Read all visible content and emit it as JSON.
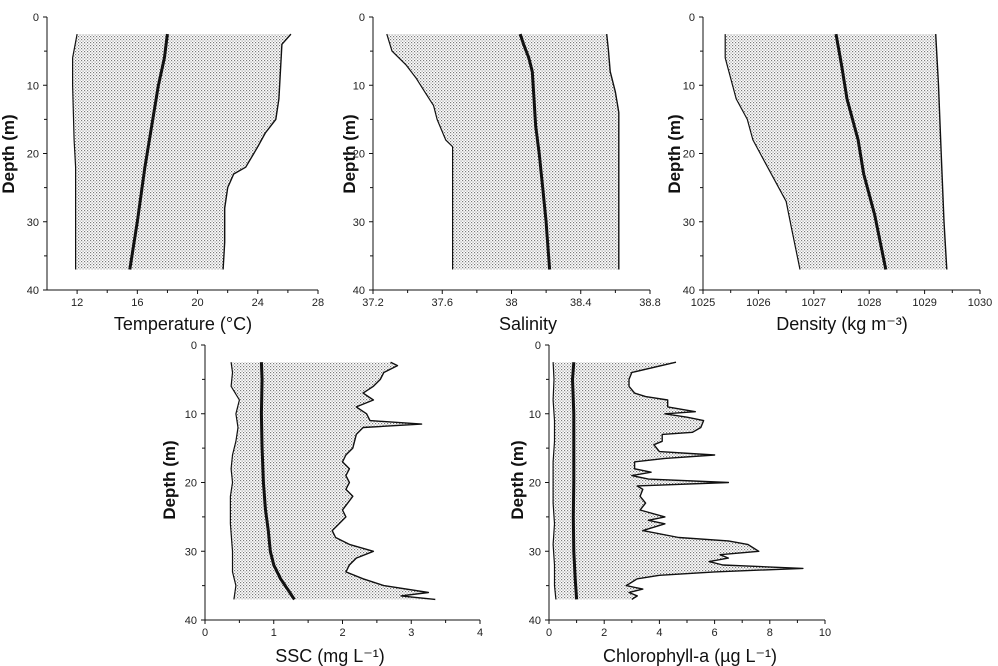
{
  "chart_data": [
    {
      "type": "area",
      "xlabel": "Temperature (°C)",
      "ylabel": "Depth (m)",
      "xlim": [
        10,
        28
      ],
      "ylim": [
        0,
        40
      ],
      "xticks": [
        "12",
        "16",
        "20",
        "24",
        "28"
      ],
      "yticks": [
        "0",
        "10",
        "20",
        "30",
        "40"
      ],
      "series": [
        {
          "role": "min",
          "points": [
            [
              12,
              2.5
            ],
            [
              11.7,
              6
            ],
            [
              11.7,
              10
            ],
            [
              11.8,
              18
            ],
            [
              11.9,
              22
            ],
            [
              11.9,
              30
            ],
            [
              11.9,
              37
            ]
          ]
        },
        {
          "role": "mean",
          "points": [
            [
              18,
              2.5
            ],
            [
              17.8,
              6
            ],
            [
              17.4,
              10
            ],
            [
              16.8,
              18
            ],
            [
              16.5,
              22
            ],
            [
              16,
              30
            ],
            [
              15.5,
              37
            ]
          ]
        },
        {
          "role": "max",
          "points": [
            [
              26.2,
              2.5
            ],
            [
              25.6,
              4
            ],
            [
              25.5,
              8
            ],
            [
              25.4,
              12
            ],
            [
              25.2,
              15
            ],
            [
              24.5,
              17
            ],
            [
              24,
              19
            ],
            [
              23.2,
              22
            ],
            [
              22.4,
              23
            ],
            [
              22,
              25
            ],
            [
              21.8,
              28
            ],
            [
              21.8,
              33
            ],
            [
              21.7,
              37
            ]
          ]
        }
      ]
    },
    {
      "type": "area",
      "xlabel": "Salinity",
      "ylabel": "Depth (m)",
      "xlim": [
        37.2,
        38.8
      ],
      "ylim": [
        0,
        40
      ],
      "xticks": [
        "37.2",
        "37.6",
        "38",
        "38.4",
        "38.8"
      ],
      "yticks": [
        "0",
        "10",
        "20",
        "30",
        "40"
      ],
      "series": [
        {
          "role": "min",
          "points": [
            [
              37.28,
              2.5
            ],
            [
              37.31,
              5
            ],
            [
              37.39,
              7
            ],
            [
              37.45,
              9
            ],
            [
              37.5,
              11
            ],
            [
              37.55,
              13
            ],
            [
              37.57,
              15
            ],
            [
              37.62,
              18
            ],
            [
              37.66,
              19
            ],
            [
              37.66,
              25
            ],
            [
              37.66,
              30
            ],
            [
              37.66,
              37
            ]
          ]
        },
        {
          "role": "mean",
          "points": [
            [
              38.05,
              2.5
            ],
            [
              38.07,
              4
            ],
            [
              38.1,
              6
            ],
            [
              38.12,
              8
            ],
            [
              38.13,
              12
            ],
            [
              38.14,
              16
            ],
            [
              38.16,
              20
            ],
            [
              38.18,
              25
            ],
            [
              38.2,
              30
            ],
            [
              38.22,
              37
            ]
          ]
        },
        {
          "role": "max",
          "points": [
            [
              38.55,
              2.5
            ],
            [
              38.56,
              5
            ],
            [
              38.57,
              8
            ],
            [
              38.6,
              11
            ],
            [
              38.62,
              14
            ],
            [
              38.62,
              20
            ],
            [
              38.62,
              30
            ],
            [
              38.62,
              37
            ]
          ]
        }
      ]
    },
    {
      "type": "area",
      "xlabel": "Density (kg m⁻³)",
      "ylabel": "Depth (m)",
      "xlim": [
        1025,
        1030
      ],
      "ylim": [
        0,
        40
      ],
      "xticks": [
        "1025",
        "1026",
        "1027",
        "1028",
        "1029",
        "1030"
      ],
      "yticks": [
        "0",
        "10",
        "20",
        "30",
        "40"
      ],
      "series": [
        {
          "role": "min",
          "points": [
            [
              1025.4,
              2.5
            ],
            [
              1025.4,
              6
            ],
            [
              1025.5,
              9
            ],
            [
              1025.6,
              12
            ],
            [
              1025.8,
              15
            ],
            [
              1025.9,
              18
            ],
            [
              1026.1,
              21
            ],
            [
              1026.3,
              24
            ],
            [
              1026.5,
              27
            ],
            [
              1026.6,
              31
            ],
            [
              1026.7,
              35
            ],
            [
              1026.75,
              37
            ]
          ]
        },
        {
          "role": "mean",
          "points": [
            [
              1027.4,
              2.5
            ],
            [
              1027.5,
              7
            ],
            [
              1027.6,
              12
            ],
            [
              1027.8,
              18
            ],
            [
              1027.9,
              23
            ],
            [
              1028.1,
              29
            ],
            [
              1028.3,
              37
            ]
          ]
        },
        {
          "role": "max",
          "points": [
            [
              1029.2,
              2.5
            ],
            [
              1029.25,
              10
            ],
            [
              1029.3,
              20
            ],
            [
              1029.35,
              30
            ],
            [
              1029.4,
              37
            ]
          ]
        }
      ]
    },
    {
      "type": "area",
      "xlabel": "SSC (mg L⁻¹)",
      "ylabel": "Depth (m)",
      "xlim": [
        0,
        4
      ],
      "ylim": [
        0,
        40
      ],
      "xticks": [
        "0",
        "1",
        "2",
        "3",
        "4"
      ],
      "yticks": [
        "0",
        "10",
        "20",
        "30",
        "40"
      ],
      "series": [
        {
          "role": "min",
          "points": [
            [
              0.38,
              2.5
            ],
            [
              0.4,
              4
            ],
            [
              0.38,
              6
            ],
            [
              0.5,
              8
            ],
            [
              0.45,
              10
            ],
            [
              0.48,
              12
            ],
            [
              0.45,
              14
            ],
            [
              0.4,
              16
            ],
            [
              0.38,
              18
            ],
            [
              0.4,
              20
            ],
            [
              0.37,
              22
            ],
            [
              0.37,
              26
            ],
            [
              0.4,
              30
            ],
            [
              0.4,
              33
            ],
            [
              0.45,
              35
            ],
            [
              0.42,
              37
            ]
          ]
        },
        {
          "role": "mean",
          "points": [
            [
              0.82,
              2.5
            ],
            [
              0.83,
              5
            ],
            [
              0.82,
              10
            ],
            [
              0.83,
              15
            ],
            [
              0.85,
              20
            ],
            [
              0.88,
              24
            ],
            [
              0.92,
              27
            ],
            [
              0.95,
              30
            ],
            [
              1.0,
              32
            ],
            [
              1.1,
              34
            ],
            [
              1.2,
              35.5
            ],
            [
              1.3,
              37
            ]
          ]
        },
        {
          "role": "max",
          "points": [
            [
              2.7,
              2.5
            ],
            [
              2.8,
              3
            ],
            [
              2.6,
              4
            ],
            [
              2.55,
              5
            ],
            [
              2.45,
              6
            ],
            [
              2.3,
              7
            ],
            [
              2.45,
              8
            ],
            [
              2.2,
              9
            ],
            [
              2.35,
              10
            ],
            [
              2.4,
              11
            ],
            [
              3.15,
              11.5
            ],
            [
              2.3,
              12
            ],
            [
              2.2,
              13
            ],
            [
              2.15,
              15
            ],
            [
              2.05,
              16
            ],
            [
              2.0,
              17
            ],
            [
              2.1,
              18
            ],
            [
              2.05,
              19
            ],
            [
              2.1,
              20
            ],
            [
              2.05,
              21
            ],
            [
              2.15,
              22
            ],
            [
              2.0,
              24
            ],
            [
              2.05,
              25
            ],
            [
              1.95,
              26
            ],
            [
              1.85,
              27
            ],
            [
              1.9,
              28
            ],
            [
              2.1,
              29
            ],
            [
              2.45,
              30
            ],
            [
              2.2,
              31
            ],
            [
              2.1,
              32
            ],
            [
              2.05,
              33
            ],
            [
              2.3,
              34
            ],
            [
              2.6,
              35
            ],
            [
              3.25,
              36
            ],
            [
              2.85,
              36.5
            ],
            [
              3.35,
              37
            ]
          ]
        }
      ]
    },
    {
      "type": "area",
      "xlabel": "Chlorophyll-a (µg L⁻¹)",
      "ylabel": "Depth (m)",
      "xlim": [
        0,
        10
      ],
      "ylim": [
        0,
        40
      ],
      "xticks": [
        "0",
        "2",
        "4",
        "6",
        "8",
        "10"
      ],
      "yticks": [
        "0",
        "10",
        "20",
        "30",
        "40"
      ],
      "series": [
        {
          "role": "min",
          "points": [
            [
              0.15,
              2.5
            ],
            [
              0.18,
              5
            ],
            [
              0.15,
              8
            ],
            [
              0.2,
              11
            ],
            [
              0.2,
              14
            ],
            [
              0.15,
              17
            ],
            [
              0.15,
              20
            ],
            [
              0.15,
              23
            ],
            [
              0.2,
              26
            ],
            [
              0.15,
              29
            ],
            [
              0.2,
              32
            ],
            [
              0.2,
              35
            ],
            [
              0.25,
              37
            ]
          ]
        },
        {
          "role": "mean",
          "points": [
            [
              0.9,
              2.5
            ],
            [
              0.85,
              5
            ],
            [
              0.9,
              10
            ],
            [
              0.9,
              15
            ],
            [
              0.9,
              20
            ],
            [
              0.88,
              25
            ],
            [
              0.9,
              30
            ],
            [
              0.95,
              34
            ],
            [
              1.0,
              37
            ]
          ]
        },
        {
          "role": "max",
          "points": [
            [
              4.6,
              2.5
            ],
            [
              3,
              4
            ],
            [
              2.9,
              5
            ],
            [
              2.9,
              6
            ],
            [
              3.1,
              7
            ],
            [
              3.5,
              7.5
            ],
            [
              4.3,
              8
            ],
            [
              4.3,
              9
            ],
            [
              5.3,
              9.7
            ],
            [
              4.2,
              10
            ],
            [
              5,
              10.5
            ],
            [
              5.6,
              11
            ],
            [
              5.5,
              12
            ],
            [
              5.2,
              12.7
            ],
            [
              4.1,
              13
            ],
            [
              4.1,
              14
            ],
            [
              3.8,
              14.5
            ],
            [
              4,
              15.5
            ],
            [
              6,
              16
            ],
            [
              4.2,
              16.5
            ],
            [
              3.1,
              17
            ],
            [
              3.1,
              18
            ],
            [
              3.7,
              18.5
            ],
            [
              3,
              19
            ],
            [
              3.6,
              19.5
            ],
            [
              6.5,
              20
            ],
            [
              3.2,
              20.5
            ],
            [
              3.4,
              21
            ],
            [
              3.3,
              22
            ],
            [
              3.5,
              23
            ],
            [
              3.3,
              24
            ],
            [
              4.2,
              25
            ],
            [
              3.6,
              25.5
            ],
            [
              4.2,
              26
            ],
            [
              3.4,
              27
            ],
            [
              4.7,
              28
            ],
            [
              6.5,
              28.5
            ],
            [
              7.2,
              29
            ],
            [
              7.6,
              30
            ],
            [
              6.2,
              30.5
            ],
            [
              6.5,
              31
            ],
            [
              5.8,
              31.5
            ],
            [
              6.3,
              32
            ],
            [
              9.2,
              32.5
            ],
            [
              6,
              33
            ],
            [
              4,
              33.5
            ],
            [
              3.2,
              34
            ],
            [
              2.8,
              35
            ],
            [
              3.4,
              35.5
            ],
            [
              2.9,
              36
            ],
            [
              3.2,
              36.5
            ],
            [
              3,
              37
            ]
          ]
        }
      ]
    }
  ]
}
